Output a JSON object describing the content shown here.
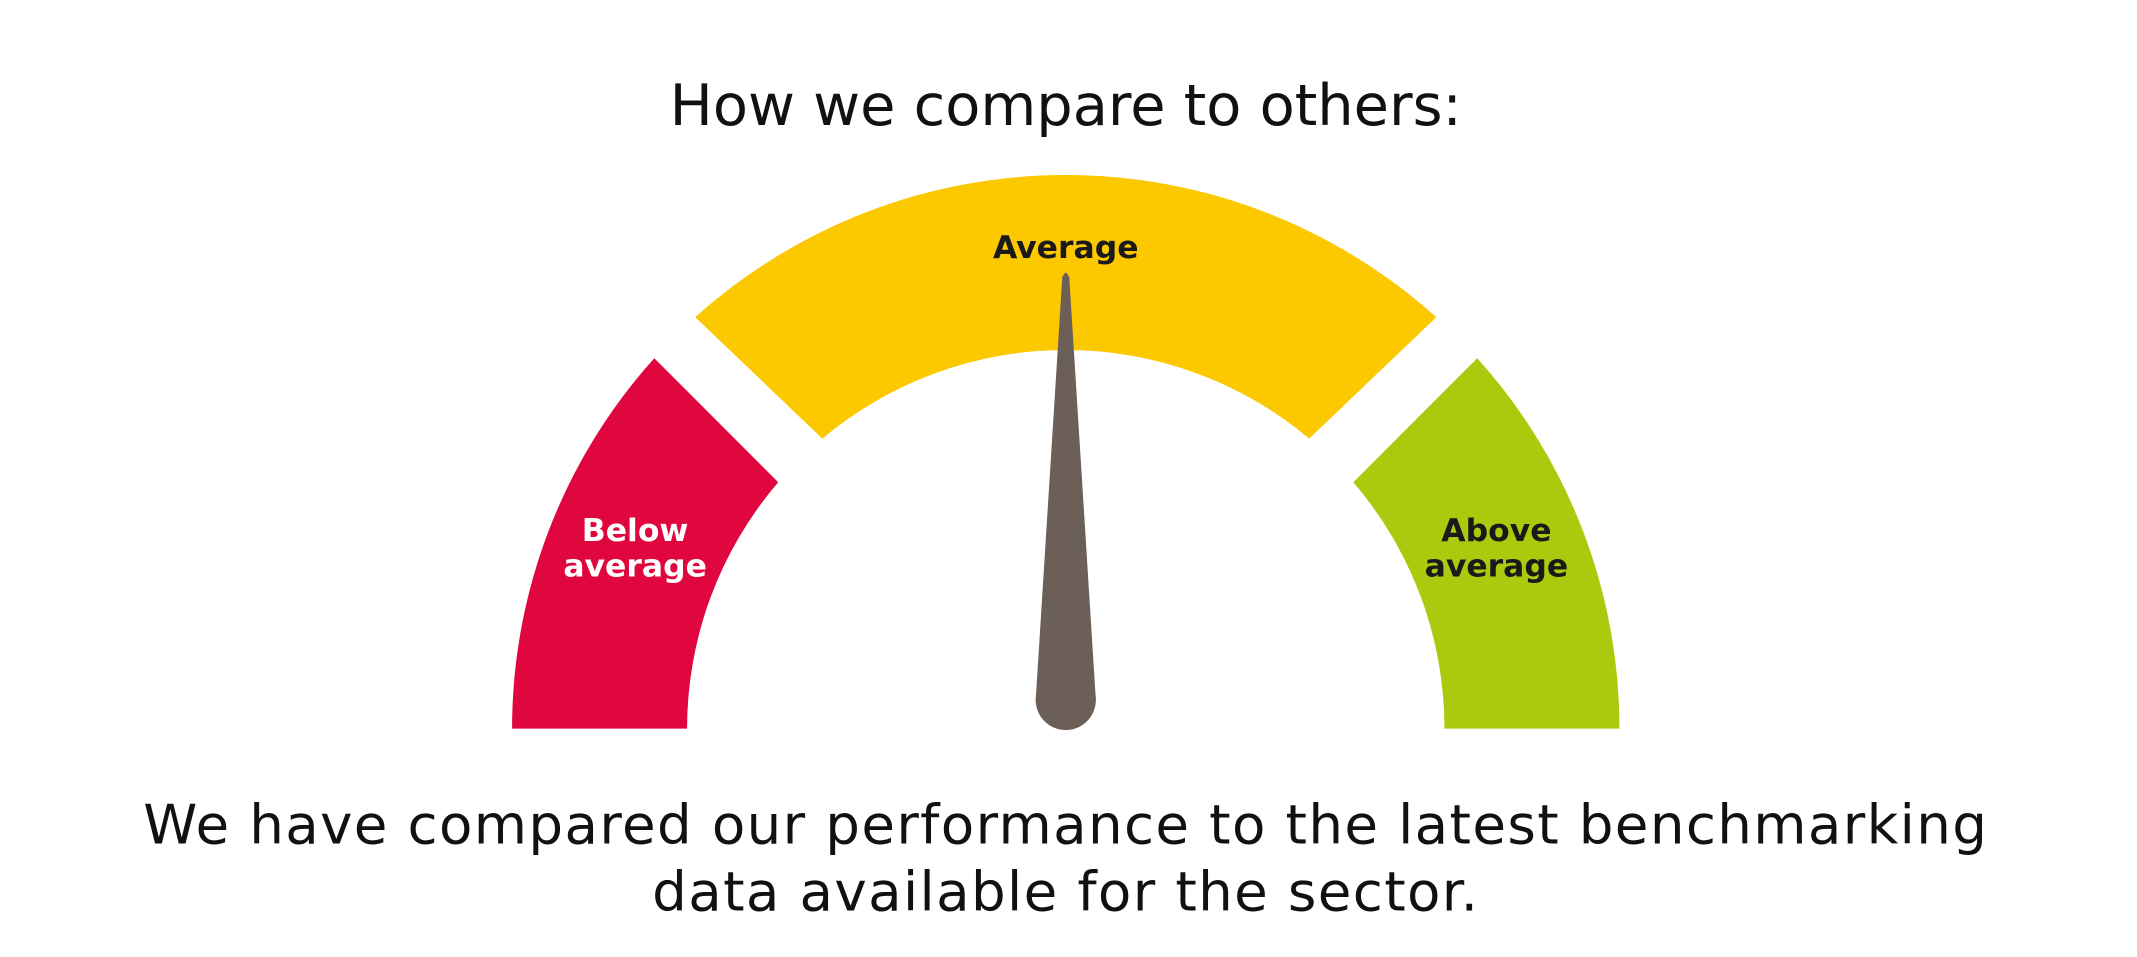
{
  "title": "How we compare to others:",
  "segments": [
    {
      "lines": [
        "Below",
        "average"
      ]
    },
    {
      "lines": [
        "Average"
      ]
    },
    {
      "lines": [
        "Above",
        "average"
      ]
    }
  ],
  "description": [
    "We have compared our performance to the latest benchmarking",
    "data available for the sector."
  ]
}
